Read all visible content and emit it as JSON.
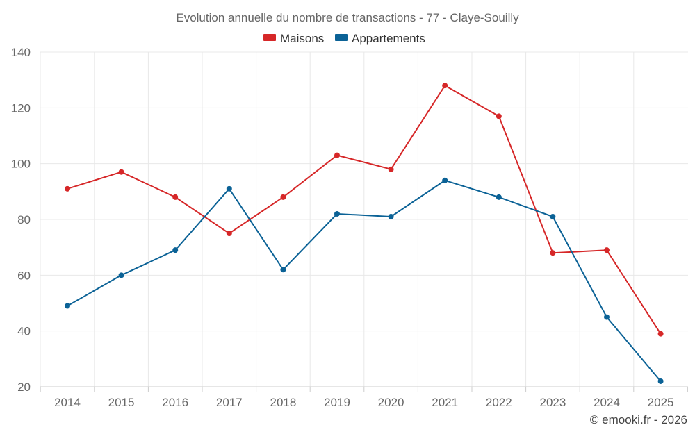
{
  "chart_data": {
    "type": "line",
    "title": "Evolution annuelle du nombre de transactions - 77 - Claye-Souilly",
    "categories": [
      "2014",
      "2015",
      "2016",
      "2017",
      "2018",
      "2019",
      "2020",
      "2021",
      "2022",
      "2023",
      "2024",
      "2025"
    ],
    "series": [
      {
        "name": "Maisons",
        "color": "#d62728",
        "values": [
          91,
          97,
          88,
          75,
          88,
          103,
          98,
          128,
          117,
          68,
          69,
          39
        ]
      },
      {
        "name": "Appartements",
        "color": "#0b6296",
        "values": [
          49,
          60,
          69,
          91,
          62,
          82,
          81,
          94,
          88,
          81,
          45,
          22
        ]
      }
    ],
    "ylim": [
      20,
      140
    ],
    "yticks": [
      "20",
      "40",
      "60",
      "80",
      "100",
      "120",
      "140"
    ],
    "xlabel": "",
    "ylabel": "",
    "grid": true,
    "legend": "top-center"
  },
  "credit": "© emooki.fr - 2026"
}
